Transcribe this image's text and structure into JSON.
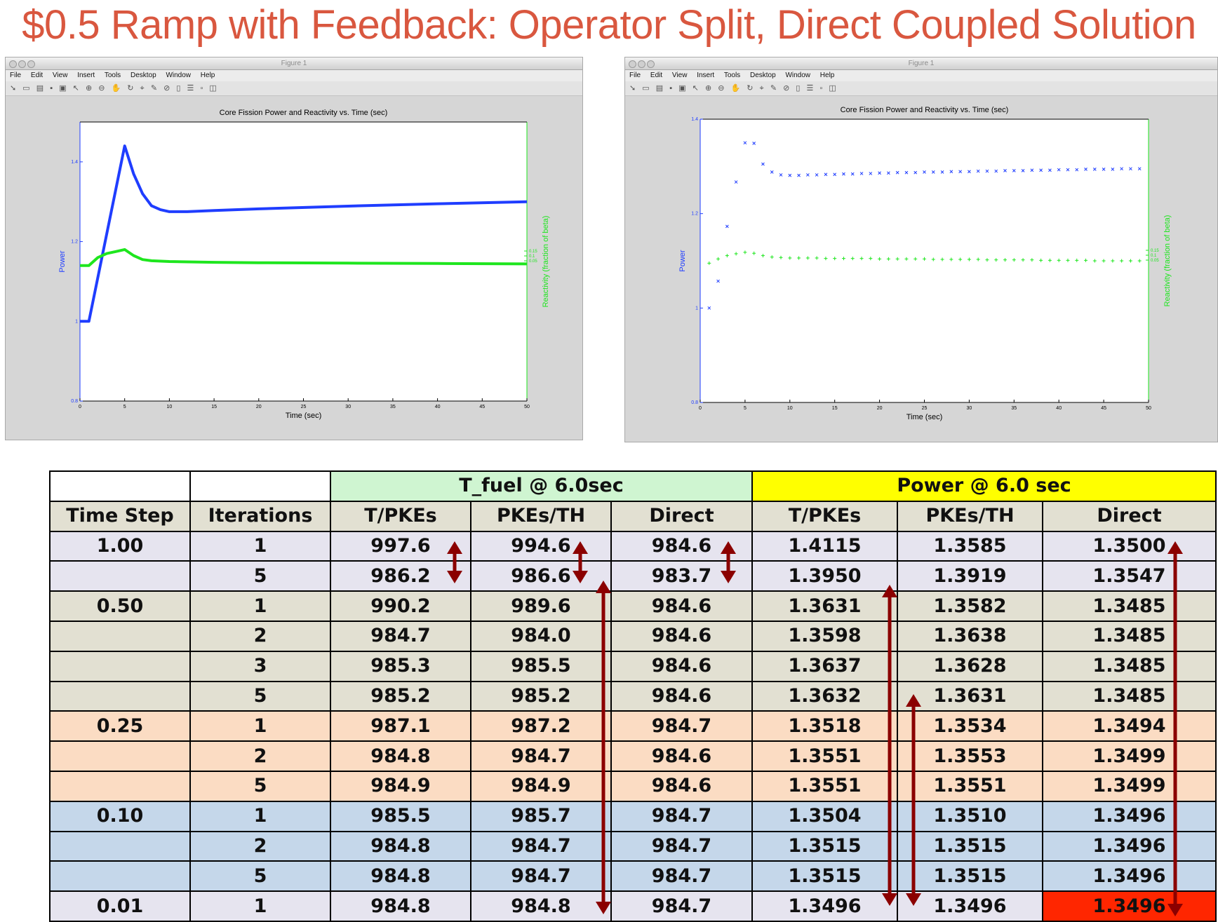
{
  "slide_title": "$0.5 Ramp with Feedback: Operator Split, Direct Coupled Solution",
  "figure_window": {
    "window_title": "Figure 1",
    "menu": [
      "File",
      "Edit",
      "View",
      "Insert",
      "Tools",
      "Desktop",
      "Window",
      "Help"
    ]
  },
  "colors": {
    "title": "#d9573f",
    "power_series": "#1f3dff",
    "reactivity_series": "#1ee61e",
    "arrow": "#8b0000",
    "row_dt_100": "#e6e4ef",
    "row_dt_050": "#e2e0d2",
    "row_dt_025": "#fbdcc3",
    "row_dt_010": "#c5d7ea",
    "row_dt_001": "#e6e4ef",
    "highlight_cell": "#ff2600"
  },
  "chart_data": [
    {
      "type": "line",
      "title": "Core Fission Power and Reactivity vs. Time (sec)",
      "xlabel": "Time (sec)",
      "ylabel": "Power",
      "ylabel_right": "Reactivity (fraction of beta)",
      "xlim": [
        0,
        50
      ],
      "ylim": [
        0.8,
        1.5
      ],
      "x_ticks": [
        "0",
        "5",
        "10",
        "15",
        "20",
        "25",
        "30",
        "35",
        "40",
        "45",
        "50"
      ],
      "y_ticks": [
        "0.8",
        "1",
        "1.2",
        "1.4"
      ],
      "y2_ticks": [
        "0.05",
        "0.1",
        "0.15"
      ],
      "grid": false,
      "series": [
        {
          "axis": "left",
          "x": [
            0,
            1,
            5,
            6,
            7,
            8,
            9,
            10,
            12,
            15,
            20,
            30,
            40,
            50
          ],
          "values": [
            1.0,
            1.0,
            1.44,
            1.37,
            1.32,
            1.29,
            1.28,
            1.275,
            1.275,
            1.278,
            1.282,
            1.289,
            1.295,
            1.3
          ]
        },
        {
          "axis": "left",
          "x": [
            0,
            1,
            2,
            3,
            4,
            5,
            6,
            7,
            8,
            10,
            15,
            20,
            30,
            40,
            50
          ],
          "values": [
            1.14,
            1.14,
            1.16,
            1.17,
            1.175,
            1.18,
            1.165,
            1.155,
            1.152,
            1.15,
            1.148,
            1.147,
            1.146,
            1.145,
            1.144
          ]
        }
      ]
    },
    {
      "type": "scatter",
      "title": "Core Fission Power and Reactivity vs. Time (sec)",
      "xlabel": "Time (sec)",
      "ylabel": "Power",
      "ylabel_right": "Reactivity (fraction of beta)",
      "xlim": [
        0,
        50
      ],
      "ylim": [
        0.8,
        1.4
      ],
      "x_ticks": [
        "0",
        "5",
        "10",
        "15",
        "20",
        "25",
        "30",
        "35",
        "40",
        "45",
        "50"
      ],
      "y_ticks": [
        "0.8",
        "1",
        "1.2",
        "1.4"
      ],
      "y2_ticks": [
        "0.05",
        "0.1",
        "0.15"
      ],
      "grid": false,
      "series": [
        {
          "axis": "left",
          "marker": "x",
          "x": [
            1,
            2,
            3,
            4,
            5,
            6,
            7,
            8,
            9,
            10,
            11,
            12,
            13,
            14,
            15,
            16,
            17,
            18,
            19,
            20,
            21,
            22,
            23,
            24,
            25,
            26,
            27,
            28,
            29,
            30,
            31,
            32,
            33,
            34,
            35,
            36,
            37,
            38,
            39,
            40,
            41,
            42,
            43,
            44,
            45,
            46,
            47,
            48,
            49
          ],
          "values": [
            1.0,
            1.057,
            1.173,
            1.267,
            1.35,
            1.349,
            1.305,
            1.288,
            1.282,
            1.281,
            1.281,
            1.282,
            1.282,
            1.283,
            1.283,
            1.284,
            1.284,
            1.285,
            1.285,
            1.286,
            1.286,
            1.287,
            1.287,
            1.287,
            1.288,
            1.288,
            1.288,
            1.289,
            1.289,
            1.289,
            1.29,
            1.29,
            1.29,
            1.291,
            1.291,
            1.291,
            1.292,
            1.292,
            1.292,
            1.293,
            1.293,
            1.293,
            1.294,
            1.294,
            1.294,
            1.294,
            1.295,
            1.295,
            1.295
          ]
        },
        {
          "axis": "left",
          "marker": "+",
          "x": [
            1,
            2,
            3,
            4,
            5,
            6,
            7,
            8,
            9,
            10,
            11,
            12,
            13,
            14,
            15,
            16,
            17,
            18,
            19,
            20,
            21,
            22,
            23,
            24,
            25,
            26,
            27,
            28,
            29,
            30,
            31,
            32,
            33,
            34,
            35,
            36,
            37,
            38,
            39,
            40,
            41,
            42,
            43,
            44,
            45,
            46,
            47,
            48,
            49
          ],
          "values": [
            1.095,
            1.104,
            1.111,
            1.115,
            1.118,
            1.116,
            1.111,
            1.108,
            1.107,
            1.106,
            1.106,
            1.106,
            1.106,
            1.105,
            1.105,
            1.105,
            1.105,
            1.105,
            1.105,
            1.104,
            1.104,
            1.104,
            1.104,
            1.104,
            1.104,
            1.103,
            1.103,
            1.103,
            1.103,
            1.103,
            1.103,
            1.102,
            1.102,
            1.102,
            1.102,
            1.102,
            1.102,
            1.101,
            1.101,
            1.101,
            1.101,
            1.101,
            1.101,
            1.1,
            1.1,
            1.1,
            1.1,
            1.1,
            1.1
          ]
        }
      ]
    }
  ],
  "table": {
    "group_headers": {
      "t_fuel": "T_fuel @ 6.0sec",
      "power": "Power @ 6.0 sec"
    },
    "column_headers": [
      "Time Step",
      "Iterations",
      "T/PKEs",
      "PKEs/TH",
      "Direct",
      "T/PKEs",
      "PKEs/TH",
      "Direct"
    ],
    "rows": [
      {
        "group": "dt100",
        "cells": [
          "1.00",
          "1",
          "997.6",
          "994.6",
          "984.6",
          "1.4115",
          "1.3585",
          "1.3500"
        ]
      },
      {
        "group": "dt100",
        "cells": [
          "",
          "5",
          "986.2",
          "986.6",
          "983.7",
          "1.3950",
          "1.3919",
          "1.3547"
        ]
      },
      {
        "group": "dt050",
        "cells": [
          "0.50",
          "1",
          "990.2",
          "989.6",
          "984.6",
          "1.3631",
          "1.3582",
          "1.3485"
        ]
      },
      {
        "group": "dt050",
        "cells": [
          "",
          "2",
          "984.7",
          "984.0",
          "984.6",
          "1.3598",
          "1.3638",
          "1.3485"
        ]
      },
      {
        "group": "dt050",
        "cells": [
          "",
          "3",
          "985.3",
          "985.5",
          "984.6",
          "1.3637",
          "1.3628",
          "1.3485"
        ]
      },
      {
        "group": "dt050",
        "cells": [
          "",
          "5",
          "985.2",
          "985.2",
          "984.6",
          "1.3632",
          "1.3631",
          "1.3485"
        ]
      },
      {
        "group": "dt025",
        "cells": [
          "0.25",
          "1",
          "987.1",
          "987.2",
          "984.7",
          "1.3518",
          "1.3534",
          "1.3494"
        ]
      },
      {
        "group": "dt025",
        "cells": [
          "",
          "2",
          "984.8",
          "984.7",
          "984.6",
          "1.3551",
          "1.3553",
          "1.3499"
        ]
      },
      {
        "group": "dt025",
        "cells": [
          "",
          "5",
          "984.9",
          "984.9",
          "984.6",
          "1.3551",
          "1.3551",
          "1.3499"
        ]
      },
      {
        "group": "dt010",
        "cells": [
          "0.10",
          "1",
          "985.5",
          "985.7",
          "984.7",
          "1.3504",
          "1.3510",
          "1.3496"
        ]
      },
      {
        "group": "dt010",
        "cells": [
          "",
          "2",
          "984.8",
          "984.7",
          "984.7",
          "1.3515",
          "1.3515",
          "1.3496"
        ]
      },
      {
        "group": "dt010",
        "cells": [
          "",
          "5",
          "984.8",
          "984.7",
          "984.7",
          "1.3515",
          "1.3515",
          "1.3496"
        ]
      },
      {
        "group": "dt001",
        "cells": [
          "0.01",
          "1",
          "984.8",
          "984.8",
          "984.7",
          "1.3496",
          "1.3496",
          "1.3496"
        ]
      }
    ]
  }
}
